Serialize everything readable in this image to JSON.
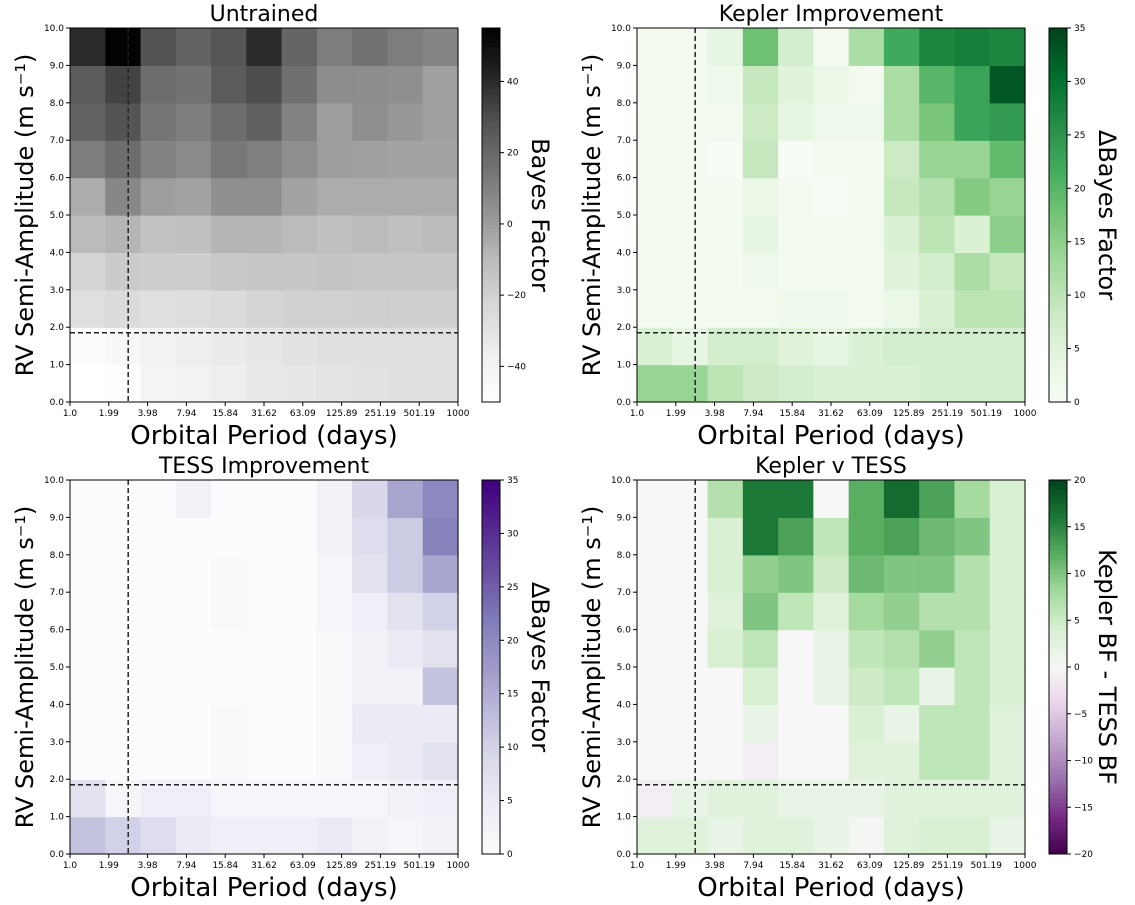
{
  "chart_data": [
    {
      "type": "heatmap",
      "title": "Untrained",
      "xlabel": "Orbital Period (days)",
      "ylabel": "RV Semi-Amplitude (m s⁻¹)",
      "x_ticks": [
        "1.0",
        "1.99",
        "3.98",
        "7.94",
        "15.84",
        "31.62",
        "63.09",
        "125.89",
        "251.19",
        "501.19",
        "1000"
      ],
      "y_ticks": [
        "0.0",
        "1.0",
        "2.0",
        "3.0",
        "4.0",
        "5.0",
        "6.0",
        "7.0",
        "8.0",
        "9.0",
        "10.0"
      ],
      "colorbar": {
        "label": "Bayes Factor",
        "colormap": "Greys",
        "range": [
          -50,
          55
        ],
        "ticks": [
          "40",
          "20",
          "0",
          "−20",
          "−40"
        ],
        "tick_values": [
          40,
          20,
          0,
          -20,
          -40
        ]
      },
      "vline_x_fraction": 0.15,
      "hline_y_value": 1.85,
      "values": [
        [
          -50,
          -49,
          -40,
          -39,
          -36,
          -33,
          -32,
          -30,
          -29,
          -28,
          -28
        ],
        [
          -47,
          -44,
          -39,
          -36,
          -34,
          -32,
          -29,
          -28,
          -28,
          -27,
          -27
        ],
        [
          -27,
          -25,
          -28,
          -26,
          -25,
          -22,
          -20,
          -20,
          -19,
          -19,
          -19
        ],
        [
          -22,
          -17,
          -18,
          -18,
          -16,
          -15,
          -15,
          -14,
          -15,
          -15,
          -15
        ],
        [
          -10,
          -8,
          -13,
          -12,
          -8,
          -8,
          -10,
          -12,
          -10,
          -12,
          -10
        ],
        [
          -5,
          8,
          0,
          -2,
          5,
          5,
          -2,
          -5,
          -5,
          -5,
          -5
        ],
        [
          12,
          18,
          10,
          7,
          14,
          11,
          5,
          0,
          -1,
          -2,
          -2
        ],
        [
          22,
          28,
          15,
          12,
          18,
          23,
          10,
          0,
          5,
          2,
          -1
        ],
        [
          25,
          33,
          18,
          16,
          25,
          30,
          17,
          6,
          6,
          5,
          -1
        ],
        [
          40,
          54,
          28,
          22,
          27,
          40,
          21,
          12,
          16,
          12,
          9
        ]
      ]
    },
    {
      "type": "heatmap",
      "title": "Kepler Improvement",
      "xlabel": "Orbital Period (days)",
      "ylabel": "RV Semi-Amplitude (m s⁻¹)",
      "x_ticks": [
        "1.0",
        "1.99",
        "3.98",
        "7.94",
        "15.84",
        "31.62",
        "63.09",
        "125.89",
        "251.19",
        "501.19",
        "1000"
      ],
      "y_ticks": [
        "0.0",
        "1.0",
        "2.0",
        "3.0",
        "4.0",
        "5.0",
        "6.0",
        "7.0",
        "8.0",
        "9.0",
        "10.0"
      ],
      "colorbar": {
        "label": "ΔBayes Factor",
        "colormap": "Greens",
        "range": [
          0,
          35
        ],
        "ticks": [
          "35",
          "30",
          "25",
          "20",
          "15",
          "10",
          "5",
          "0"
        ],
        "tick_values": [
          35,
          30,
          25,
          20,
          15,
          10,
          5,
          0
        ]
      },
      "vline_x_fraction": 0.15,
      "hline_y_value": 1.85,
      "values": [
        [
          14,
          14,
          10,
          8,
          7,
          6,
          6,
          6,
          7,
          7,
          7
        ],
        [
          6,
          4,
          7,
          7,
          5,
          4,
          6,
          7,
          7,
          7,
          7
        ],
        [
          1,
          1,
          1,
          1,
          2,
          2,
          1,
          3,
          6,
          10,
          10
        ],
        [
          1,
          1,
          1,
          2,
          1,
          1,
          1,
          5,
          7,
          12,
          9
        ],
        [
          1,
          1,
          1,
          4,
          1,
          1,
          1,
          6,
          10,
          6,
          15
        ],
        [
          1,
          1,
          1,
          3,
          1,
          0,
          1,
          9,
          11,
          16,
          14
        ],
        [
          1,
          1,
          0,
          9,
          0,
          1,
          1,
          8,
          14,
          14,
          19
        ],
        [
          1,
          1,
          1,
          8,
          4,
          2,
          2,
          12,
          17,
          23,
          24
        ],
        [
          1,
          1,
          2,
          9,
          5,
          3,
          1,
          12,
          20,
          23,
          33
        ],
        [
          1,
          1,
          4,
          18,
          7,
          1,
          12,
          22,
          27,
          28,
          27
        ]
      ]
    },
    {
      "type": "heatmap",
      "title": "TESS Improvement",
      "xlabel": "Orbital Period (days)",
      "ylabel": "RV Semi-Amplitude (m s⁻¹)",
      "x_ticks": [
        "1.0",
        "1.99",
        "3.98",
        "7.94",
        "15.84",
        "31.62",
        "63.09",
        "125.89",
        "251.19",
        "501.19",
        "1000"
      ],
      "y_ticks": [
        "0.0",
        "1.0",
        "2.0",
        "3.0",
        "4.0",
        "5.0",
        "6.0",
        "7.0",
        "8.0",
        "9.0",
        "10.0"
      ],
      "colorbar": {
        "label": "ΔBayes Factor",
        "colormap": "Purples",
        "range": [
          0,
          35
        ],
        "ticks": [
          "35",
          "30",
          "25",
          "20",
          "15",
          "10",
          "5",
          "0"
        ],
        "tick_values": [
          35,
          30,
          25,
          20,
          15,
          10,
          5,
          0
        ]
      },
      "vline_x_fraction": 0.15,
      "hline_y_value": 1.85,
      "values": [
        [
          12,
          10,
          8,
          5,
          4,
          4,
          4,
          5,
          3,
          2,
          3
        ],
        [
          7,
          2,
          4,
          4,
          2,
          2,
          2,
          2,
          2,
          3,
          4
        ],
        [
          0,
          0,
          0,
          0,
          1,
          0,
          0,
          1,
          4,
          5,
          7
        ],
        [
          0,
          0,
          0,
          0,
          1,
          0,
          0,
          1,
          5,
          5,
          5
        ],
        [
          0,
          0,
          0,
          0,
          0,
          0,
          0,
          1,
          3,
          3,
          12
        ],
        [
          0,
          0,
          0,
          0,
          0,
          0,
          0,
          1,
          3,
          5,
          7
        ],
        [
          0,
          0,
          0,
          0,
          1,
          0,
          0,
          2,
          4,
          7,
          10
        ],
        [
          0,
          0,
          0,
          0,
          1,
          0,
          0,
          2,
          7,
          11,
          16
        ],
        [
          0,
          0,
          0,
          0,
          0,
          0,
          0,
          3,
          8,
          11,
          21
        ],
        [
          0,
          0,
          0,
          3,
          0,
          0,
          0,
          3,
          9,
          16,
          20
        ]
      ]
    },
    {
      "type": "heatmap",
      "title": "Kepler v TESS",
      "xlabel": "Orbital Period (days)",
      "ylabel": "RV Semi-Amplitude (m s⁻¹)",
      "x_ticks": [
        "1.0",
        "1.99",
        "3.98",
        "7.94",
        "15.84",
        "31.62",
        "63.09",
        "125.89",
        "251.19",
        "501.19",
        "1000"
      ],
      "y_ticks": [
        "0.0",
        "1.0",
        "2.0",
        "3.0",
        "4.0",
        "5.0",
        "6.0",
        "7.0",
        "8.0",
        "9.0",
        "10.0"
      ],
      "colorbar": {
        "label": "Kepler BF - TESS BF",
        "colormap": "PRGn",
        "range": [
          -20,
          20
        ],
        "ticks": [
          "20",
          "15",
          "10",
          "5",
          "0",
          "−5",
          "−10",
          "−15",
          "−20"
        ],
        "tick_values": [
          20,
          15,
          10,
          5,
          0,
          -5,
          -10,
          -15,
          -20
        ]
      },
      "vline_x_fraction": 0.15,
      "hline_y_value": 1.85,
      "values": [
        [
          3,
          3,
          2,
          3,
          3,
          2,
          0.5,
          3,
          4,
          4,
          2
        ],
        [
          -1,
          2,
          3,
          3,
          2,
          2,
          2,
          3,
          3,
          3,
          3
        ],
        [
          0,
          0,
          0,
          -1,
          0,
          0,
          3,
          3,
          6,
          6,
          3
        ],
        [
          0,
          0,
          0,
          2,
          0,
          0,
          4,
          2,
          6,
          6,
          3
        ],
        [
          0,
          0,
          0,
          4,
          0,
          2,
          5,
          6,
          2,
          6,
          4
        ],
        [
          0,
          0,
          4,
          6,
          0,
          2,
          6,
          7,
          9,
          6,
          4
        ],
        [
          0,
          0,
          3,
          10,
          6,
          3,
          8,
          9,
          7,
          7,
          4
        ],
        [
          0,
          0,
          4,
          9,
          10,
          5,
          11,
          10,
          10,
          7,
          4
        ],
        [
          0,
          0,
          4,
          16,
          13,
          6,
          12,
          13,
          11,
          10,
          4
        ],
        [
          0,
          0,
          7,
          16,
          16,
          0,
          12,
          17,
          13,
          8,
          4
        ]
      ]
    }
  ]
}
